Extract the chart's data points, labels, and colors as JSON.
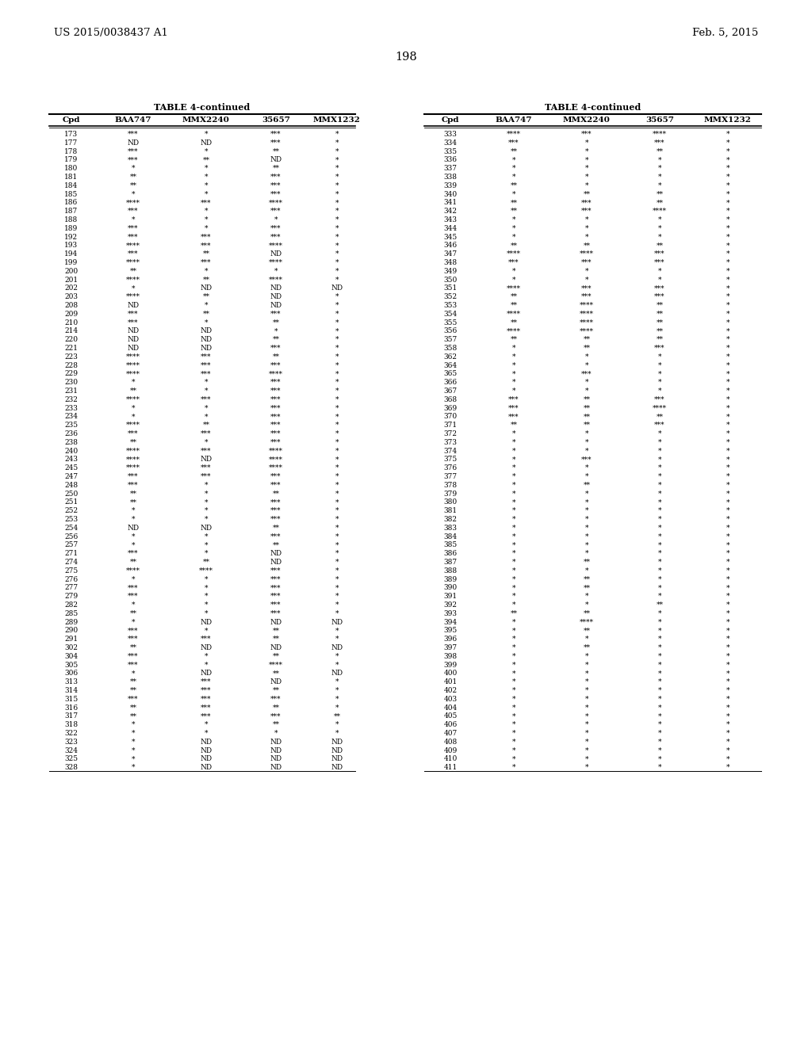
{
  "patent_left": "US 2015/0038437 A1",
  "patent_right": "Feb. 5, 2015",
  "page_number": "198",
  "table_title": "TABLE 4-continued",
  "headers": [
    "Cpd",
    "BAA747",
    "MMX2240",
    "35657",
    "MMX1232"
  ],
  "left_table": [
    [
      "173",
      "***",
      "*",
      "***",
      "*"
    ],
    [
      "177",
      "ND",
      "ND",
      "***",
      "*"
    ],
    [
      "178",
      "***",
      "*",
      "**",
      "*"
    ],
    [
      "179",
      "***",
      "**",
      "ND",
      "*"
    ],
    [
      "180",
      "*",
      "*",
      "**",
      "*"
    ],
    [
      "181",
      "**",
      "*",
      "***",
      "*"
    ],
    [
      "184",
      "**",
      "*",
      "***",
      "*"
    ],
    [
      "185",
      "*",
      "*",
      "***",
      "*"
    ],
    [
      "186",
      "****",
      "***",
      "****",
      "*"
    ],
    [
      "187",
      "***",
      "*",
      "***",
      "*"
    ],
    [
      "188",
      "*",
      "*",
      "*",
      "*"
    ],
    [
      "189",
      "***",
      "*",
      "***",
      "*"
    ],
    [
      "192",
      "***",
      "***",
      "***",
      "*"
    ],
    [
      "193",
      "****",
      "***",
      "****",
      "*"
    ],
    [
      "194",
      "***",
      "**",
      "ND",
      "*"
    ],
    [
      "199",
      "****",
      "***",
      "****",
      "*"
    ],
    [
      "200",
      "**",
      "*",
      "*",
      "*"
    ],
    [
      "201",
      "****",
      "**",
      "****",
      "*"
    ],
    [
      "202",
      "*",
      "ND",
      "ND",
      "ND"
    ],
    [
      "203",
      "****",
      "**",
      "ND",
      "*"
    ],
    [
      "208",
      "ND",
      "*",
      "ND",
      "*"
    ],
    [
      "209",
      "***",
      "**",
      "***",
      "*"
    ],
    [
      "210",
      "***",
      "*",
      "**",
      "*"
    ],
    [
      "214",
      "ND",
      "ND",
      "*",
      "*"
    ],
    [
      "220",
      "ND",
      "ND",
      "**",
      "*"
    ],
    [
      "221",
      "ND",
      "ND",
      "***",
      "*"
    ],
    [
      "223",
      "****",
      "***",
      "**",
      "*"
    ],
    [
      "228",
      "****",
      "***",
      "***",
      "*"
    ],
    [
      "229",
      "****",
      "***",
      "****",
      "*"
    ],
    [
      "230",
      "*",
      "*",
      "***",
      "*"
    ],
    [
      "231",
      "**",
      "*",
      "***",
      "*"
    ],
    [
      "232",
      "****",
      "***",
      "***",
      "*"
    ],
    [
      "233",
      "*",
      "*",
      "***",
      "*"
    ],
    [
      "234",
      "*",
      "*",
      "***",
      "*"
    ],
    [
      "235",
      "****",
      "**",
      "***",
      "*"
    ],
    [
      "236",
      "***",
      "***",
      "***",
      "*"
    ],
    [
      "238",
      "**",
      "*",
      "***",
      "*"
    ],
    [
      "240",
      "****",
      "***",
      "****",
      "*"
    ],
    [
      "243",
      "****",
      "ND",
      "****",
      "*"
    ],
    [
      "245",
      "****",
      "***",
      "****",
      "*"
    ],
    [
      "247",
      "***",
      "***",
      "***",
      "*"
    ],
    [
      "248",
      "***",
      "*",
      "***",
      "*"
    ],
    [
      "250",
      "**",
      "*",
      "**",
      "*"
    ],
    [
      "251",
      "**",
      "*",
      "***",
      "*"
    ],
    [
      "252",
      "*",
      "*",
      "***",
      "*"
    ],
    [
      "253",
      "*",
      "*",
      "***",
      "*"
    ],
    [
      "254",
      "ND",
      "ND",
      "**",
      "*"
    ],
    [
      "256",
      "*",
      "*",
      "***",
      "*"
    ],
    [
      "257",
      "*",
      "*",
      "**",
      "*"
    ],
    [
      "271",
      "***",
      "*",
      "ND",
      "*"
    ],
    [
      "274",
      "**",
      "**",
      "ND",
      "*"
    ],
    [
      "275",
      "****",
      "****",
      "***",
      "*"
    ],
    [
      "276",
      "*",
      "*",
      "***",
      "*"
    ],
    [
      "277",
      "***",
      "*",
      "***",
      "*"
    ],
    [
      "279",
      "***",
      "*",
      "***",
      "*"
    ],
    [
      "282",
      "*",
      "*",
      "***",
      "*"
    ],
    [
      "285",
      "**",
      "*",
      "***",
      "*"
    ],
    [
      "289",
      "*",
      "ND",
      "ND",
      "ND"
    ],
    [
      "290",
      "***",
      "*",
      "**",
      "*"
    ],
    [
      "291",
      "***",
      "***",
      "**",
      "*"
    ],
    [
      "302",
      "**",
      "ND",
      "ND",
      "ND"
    ],
    [
      "304",
      "***",
      "*",
      "**",
      "*"
    ],
    [
      "305",
      "***",
      "*",
      "****",
      "*"
    ],
    [
      "306",
      "*",
      "ND",
      "**",
      "ND"
    ],
    [
      "313",
      "**",
      "***",
      "ND",
      "*"
    ],
    [
      "314",
      "**",
      "***",
      "**",
      "*"
    ],
    [
      "315",
      "***",
      "***",
      "***",
      "*"
    ],
    [
      "316",
      "**",
      "***",
      "**",
      "*"
    ],
    [
      "317",
      "**",
      "***",
      "***",
      "**"
    ],
    [
      "318",
      "*",
      "*",
      "**",
      "*"
    ],
    [
      "322",
      "*",
      "*",
      "*",
      "*"
    ],
    [
      "323",
      "*",
      "ND",
      "ND",
      "ND"
    ],
    [
      "324",
      "*",
      "ND",
      "ND",
      "ND"
    ],
    [
      "325",
      "*",
      "ND",
      "ND",
      "ND"
    ],
    [
      "328",
      "*",
      "ND",
      "ND",
      "ND"
    ]
  ],
  "right_table": [
    [
      "333",
      "****",
      "***",
      "****",
      "*"
    ],
    [
      "334",
      "***",
      "*",
      "***",
      "*"
    ],
    [
      "335",
      "**",
      "*",
      "**",
      "*"
    ],
    [
      "336",
      "*",
      "*",
      "*",
      "*"
    ],
    [
      "337",
      "*",
      "*",
      "*",
      "*"
    ],
    [
      "338",
      "*",
      "*",
      "*",
      "*"
    ],
    [
      "339",
      "**",
      "*",
      "*",
      "*"
    ],
    [
      "340",
      "*",
      "**",
      "**",
      "*"
    ],
    [
      "341",
      "**",
      "***",
      "**",
      "*"
    ],
    [
      "342",
      "**",
      "***",
      "****",
      "*"
    ],
    [
      "343",
      "*",
      "*",
      "*",
      "*"
    ],
    [
      "344",
      "*",
      "*",
      "*",
      "*"
    ],
    [
      "345",
      "*",
      "*",
      "*",
      "*"
    ],
    [
      "346",
      "**",
      "**",
      "**",
      "*"
    ],
    [
      "347",
      "****",
      "****",
      "***",
      "*"
    ],
    [
      "348",
      "***",
      "***",
      "***",
      "*"
    ],
    [
      "349",
      "*",
      "*",
      "*",
      "*"
    ],
    [
      "350",
      "*",
      "*",
      "*",
      "*"
    ],
    [
      "351",
      "****",
      "***",
      "***",
      "*"
    ],
    [
      "352",
      "**",
      "***",
      "***",
      "*"
    ],
    [
      "353",
      "**",
      "****",
      "**",
      "*"
    ],
    [
      "354",
      "****",
      "****",
      "**",
      "*"
    ],
    [
      "355",
      "**",
      "****",
      "**",
      "*"
    ],
    [
      "356",
      "****",
      "****",
      "**",
      "*"
    ],
    [
      "357",
      "**",
      "**",
      "**",
      "*"
    ],
    [
      "358",
      "*",
      "**",
      "***",
      "*"
    ],
    [
      "362",
      "*",
      "*",
      "*",
      "*"
    ],
    [
      "364",
      "*",
      "*",
      "*",
      "*"
    ],
    [
      "365",
      "*",
      "***",
      "*",
      "*"
    ],
    [
      "366",
      "*",
      "*",
      "*",
      "*"
    ],
    [
      "367",
      "*",
      "*",
      "*",
      "*"
    ],
    [
      "368",
      "***",
      "**",
      "***",
      "*"
    ],
    [
      "369",
      "***",
      "**",
      "****",
      "*"
    ],
    [
      "370",
      "***",
      "**",
      "**",
      "*"
    ],
    [
      "371",
      "**",
      "**",
      "***",
      "*"
    ],
    [
      "372",
      "*",
      "*",
      "*",
      "*"
    ],
    [
      "373",
      "*",
      "*",
      "*",
      "*"
    ],
    [
      "374",
      "*",
      "*",
      "*",
      "*"
    ],
    [
      "375",
      "*",
      "***",
      "*",
      "*"
    ],
    [
      "376",
      "*",
      "*",
      "*",
      "*"
    ],
    [
      "377",
      "*",
      "*",
      "*",
      "*"
    ],
    [
      "378",
      "*",
      "**",
      "*",
      "*"
    ],
    [
      "379",
      "*",
      "*",
      "*",
      "*"
    ],
    [
      "380",
      "*",
      "*",
      "*",
      "*"
    ],
    [
      "381",
      "*",
      "*",
      "*",
      "*"
    ],
    [
      "382",
      "*",
      "*",
      "*",
      "*"
    ],
    [
      "383",
      "*",
      "*",
      "*",
      "*"
    ],
    [
      "384",
      "*",
      "*",
      "*",
      "*"
    ],
    [
      "385",
      "*",
      "*",
      "*",
      "*"
    ],
    [
      "386",
      "*",
      "*",
      "*",
      "*"
    ],
    [
      "387",
      "*",
      "**",
      "*",
      "*"
    ],
    [
      "388",
      "*",
      "*",
      "*",
      "*"
    ],
    [
      "389",
      "*",
      "**",
      "*",
      "*"
    ],
    [
      "390",
      "*",
      "**",
      "*",
      "*"
    ],
    [
      "391",
      "*",
      "*",
      "*",
      "*"
    ],
    [
      "392",
      "*",
      "*",
      "**",
      "*"
    ],
    [
      "393",
      "**",
      "**",
      "*",
      "*"
    ],
    [
      "394",
      "*",
      "****",
      "*",
      "*"
    ],
    [
      "395",
      "*",
      "**",
      "*",
      "*"
    ],
    [
      "396",
      "*",
      "*",
      "*",
      "*"
    ],
    [
      "397",
      "*",
      "**",
      "*",
      "*"
    ],
    [
      "398",
      "*",
      "*",
      "*",
      "*"
    ],
    [
      "399",
      "*",
      "*",
      "*",
      "*"
    ],
    [
      "400",
      "*",
      "*",
      "*",
      "*"
    ],
    [
      "401",
      "*",
      "*",
      "*",
      "*"
    ],
    [
      "402",
      "*",
      "*",
      "*",
      "*"
    ],
    [
      "403",
      "*",
      "*",
      "*",
      "*"
    ],
    [
      "404",
      "*",
      "*",
      "*",
      "*"
    ],
    [
      "405",
      "*",
      "*",
      "*",
      "*"
    ],
    [
      "406",
      "*",
      "*",
      "*",
      "*"
    ],
    [
      "407",
      "*",
      "*",
      "*",
      "*"
    ],
    [
      "408",
      "*",
      "*",
      "*",
      "*"
    ],
    [
      "409",
      "*",
      "*",
      "*",
      "*"
    ],
    [
      "410",
      "*",
      "*",
      "*",
      "*"
    ],
    [
      "411",
      "*",
      "*",
      "*",
      "*"
    ]
  ],
  "background_color": "#ffffff",
  "text_color": "#000000",
  "font_size": 6.5,
  "header_font_size": 7.5,
  "title_font_size": 8.0,
  "patent_font_size": 9.5,
  "page_font_size": 10.5
}
